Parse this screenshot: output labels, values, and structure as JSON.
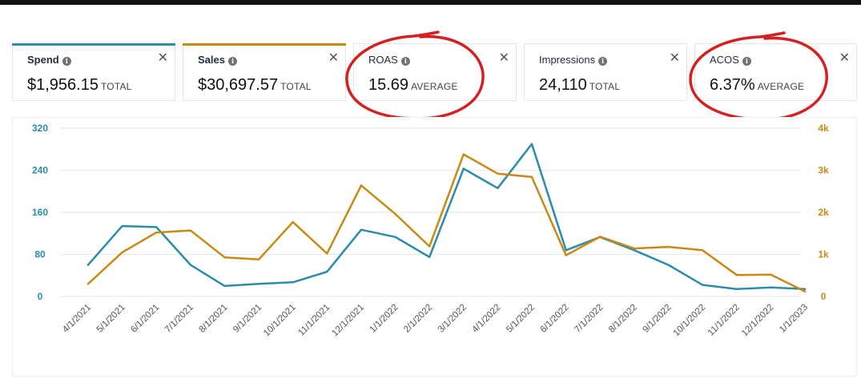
{
  "metrics": [
    {
      "label": "Spend",
      "value": "$1,956.15",
      "unit": "TOTAL",
      "accent": "#2b8cab",
      "active": true
    },
    {
      "label": "Sales",
      "value": "$30,697.57",
      "unit": "TOTAL",
      "accent": "#c88a14",
      "active": true
    },
    {
      "label": "ROAS",
      "value": "15.69",
      "unit": "AVERAGE",
      "accent": "",
      "active": false
    },
    {
      "label": "Impressions",
      "value": "24,110",
      "unit": "TOTAL",
      "accent": "",
      "active": false
    },
    {
      "label": "ACOS",
      "value": "6.37%",
      "unit": "AVERAGE",
      "accent": "",
      "active": false
    }
  ],
  "icons": {
    "info": "info-icon",
    "close": "close-icon",
    "close_glyph": "✕",
    "info_glyph": "i"
  },
  "annotation_color": "#d42020",
  "chart_data": {
    "type": "line",
    "x": [
      "4/1/2021",
      "5/1/2021",
      "6/1/2021",
      "7/1/2021",
      "8/1/2021",
      "9/1/2021",
      "10/1/2021",
      "11/1/2021",
      "12/1/2021",
      "1/1/2022",
      "2/1/2022",
      "3/1/2022",
      "4/1/2022",
      "5/1/2022",
      "6/1/2022",
      "7/1/2022",
      "8/1/2022",
      "9/1/2022",
      "10/1/2022",
      "11/1/2022",
      "12/1/2022",
      "1/1/2023"
    ],
    "series": [
      {
        "name": "Spend",
        "axis": "left",
        "color": "#2b8cab",
        "values": [
          60,
          134,
          132,
          60,
          20,
          24,
          27,
          47,
          127,
          113,
          75,
          243,
          206,
          290,
          88,
          113,
          88,
          60,
          22,
          14,
          17,
          14
        ]
      },
      {
        "name": "Sales",
        "axis": "right",
        "color": "#c88a14",
        "values": [
          300,
          1050,
          1520,
          1570,
          930,
          880,
          1770,
          1020,
          2640,
          1960,
          1190,
          3380,
          2920,
          2840,
          980,
          1420,
          1140,
          1180,
          1100,
          510,
          520,
          120
        ]
      }
    ],
    "left_axis": {
      "ticks": [
        "320",
        "240",
        "160",
        "80",
        "0"
      ],
      "ylim": [
        0,
        320
      ],
      "color": "#2b8cab"
    },
    "right_axis": {
      "ticks": [
        "4k",
        "3k",
        "2k",
        "1k",
        "0"
      ],
      "ylim": [
        0,
        4000
      ],
      "color": "#c88a14"
    },
    "grid": true
  }
}
